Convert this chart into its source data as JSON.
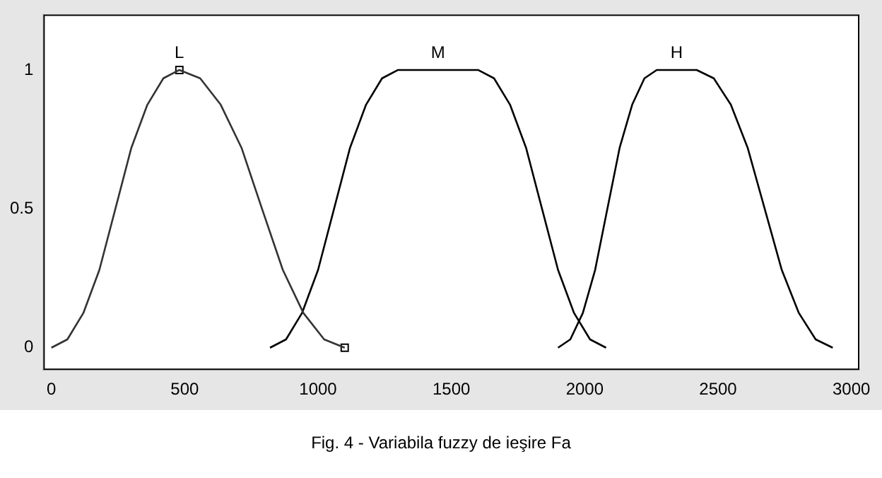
{
  "chart_data": {
    "type": "line",
    "annotations": [
      "Fig. 4 - Variabila fuzzy de ieşire Fa"
    ],
    "xlim": [
      -30,
      3030
    ],
    "ylim": [
      -0.08,
      1.2
    ],
    "xticks": [
      0,
      500,
      1000,
      1500,
      2000,
      2500,
      3000
    ],
    "yticks": [
      0,
      0.5,
      1
    ],
    "grid": false,
    "legend": false,
    "marker": "none",
    "line_style": "solid",
    "series": [
      {
        "name": "L",
        "color": "#333333",
        "x": [
          0,
          60,
          120,
          180,
          240,
          300,
          360,
          420,
          480,
          558,
          635,
          713,
          790,
          868,
          945,
          1023,
          1100
        ],
        "values": [
          0,
          0.03,
          0.125,
          0.28,
          0.5,
          0.72,
          0.875,
          0.97,
          1,
          0.97,
          0.875,
          0.72,
          0.5,
          0.28,
          0.125,
          0.03,
          0
        ]
      },
      {
        "name": "M",
        "color": "#000000",
        "x": [
          820,
          880,
          940,
          1000,
          1060,
          1120,
          1180,
          1240,
          1300,
          1600,
          1660,
          1720,
          1780,
          1840,
          1900,
          1960,
          2020,
          2080
        ],
        "values": [
          0,
          0.03,
          0.125,
          0.28,
          0.5,
          0.72,
          0.875,
          0.97,
          1,
          1,
          0.97,
          0.875,
          0.72,
          0.5,
          0.28,
          0.125,
          0.03,
          0
        ]
      },
      {
        "name": "H",
        "color": "#000000",
        "x": [
          1900,
          1946,
          1993,
          2039,
          2085,
          2131,
          2178,
          2224,
          2270,
          2420,
          2484,
          2548,
          2611,
          2675,
          2739,
          2803,
          2866,
          2930
        ],
        "values": [
          0,
          0.03,
          0.125,
          0.28,
          0.5,
          0.72,
          0.875,
          0.97,
          1,
          1,
          0.97,
          0.875,
          0.72,
          0.5,
          0.28,
          0.125,
          0.03,
          0
        ]
      },
      {
        "type": "scatter",
        "color": "#000000",
        "marker": "square",
        "x": [
          480,
          1100
        ],
        "values": [
          1,
          0
        ]
      }
    ]
  }
}
